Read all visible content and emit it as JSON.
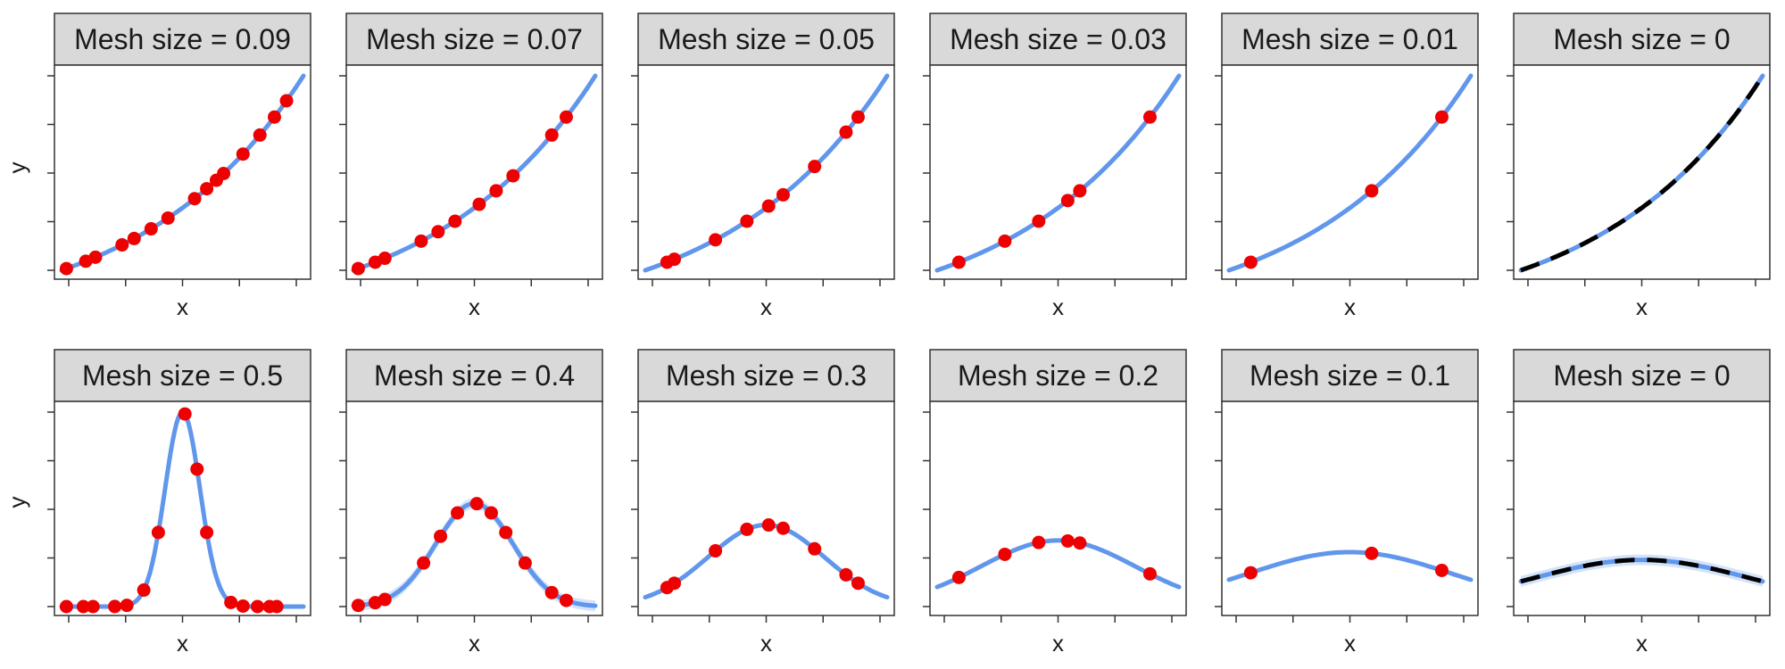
{
  "figure": {
    "ylabel_top": "y",
    "ylabel_bottom": "y"
  },
  "colors": {
    "fit_line": "#6096ec",
    "fit_ribbon": "#c9dcf7",
    "points": "#ee0000",
    "truth_line": "#000000",
    "strip_bg": "#d9d9d9",
    "panel_border": "#333333"
  },
  "chart_data": [
    {
      "type": "line",
      "title": "Mesh size = 0.09",
      "xlabel": "x",
      "row": "top",
      "curve": "exp",
      "points_x": [
        0.02,
        0.1,
        0.14,
        0.25,
        0.3,
        0.37,
        0.44,
        0.55,
        0.6,
        0.64,
        0.67,
        0.75,
        0.82,
        0.88,
        0.93
      ]
    },
    {
      "type": "line",
      "title": "Mesh size = 0.07",
      "xlabel": "x",
      "row": "top",
      "curve": "exp",
      "points_x": [
        0.02,
        0.09,
        0.13,
        0.28,
        0.35,
        0.42,
        0.52,
        0.59,
        0.66,
        0.82,
        0.88
      ]
    },
    {
      "type": "line",
      "title": "Mesh size = 0.05",
      "xlabel": "x",
      "row": "top",
      "curve": "exp",
      "points_x": [
        0.09,
        0.12,
        0.29,
        0.42,
        0.51,
        0.57,
        0.7,
        0.83,
        0.88
      ]
    },
    {
      "type": "line",
      "title": "Mesh size = 0.03",
      "xlabel": "x",
      "row": "top",
      "curve": "exp",
      "points_x": [
        0.09,
        0.28,
        0.42,
        0.54,
        0.59,
        0.88
      ]
    },
    {
      "type": "line",
      "title": "Mesh size = 0.01",
      "xlabel": "x",
      "row": "top",
      "curve": "exp",
      "points_x": [
        0.09,
        0.59,
        0.88
      ]
    },
    {
      "type": "line",
      "title": "Mesh size = 0",
      "xlabel": "x",
      "row": "top",
      "curve": "exp",
      "points_x": [],
      "truth": true
    },
    {
      "type": "line",
      "title": "Mesh size = 0.5",
      "xlabel": "x",
      "row": "bottom",
      "curve": "gauss",
      "sigma": 0.072,
      "points_x": [
        0.02,
        0.09,
        0.13,
        0.22,
        0.27,
        0.34,
        0.4,
        0.51,
        0.56,
        0.6,
        0.7,
        0.75,
        0.81,
        0.86,
        0.89
      ]
    },
    {
      "type": "line",
      "title": "Mesh size = 0.4",
      "xlabel": "x",
      "row": "bottom",
      "curve": "gauss",
      "sigma": 0.16,
      "peak": 0.53,
      "points_x": [
        0.02,
        0.09,
        0.13,
        0.29,
        0.36,
        0.43,
        0.51,
        0.57,
        0.63,
        0.71,
        0.82,
        0.88
      ],
      "ribbon": true
    },
    {
      "type": "line",
      "title": "Mesh size = 0.3",
      "xlabel": "x",
      "row": "bottom",
      "curve": "gauss",
      "sigma": 0.24,
      "peak": 0.42,
      "points_x": [
        0.09,
        0.12,
        0.29,
        0.42,
        0.51,
        0.57,
        0.7,
        0.83,
        0.88
      ]
    },
    {
      "type": "line",
      "title": "Mesh size = 0.2",
      "xlabel": "x",
      "row": "bottom",
      "curve": "gauss",
      "sigma": 0.32,
      "peak": 0.34,
      "points_x": [
        0.09,
        0.28,
        0.42,
        0.54,
        0.59,
        0.88
      ]
    },
    {
      "type": "line",
      "title": "Mesh size = 0.1",
      "xlabel": "x",
      "row": "bottom",
      "curve": "gauss",
      "sigma": 0.42,
      "peak": 0.28,
      "points_x": [
        0.09,
        0.59,
        0.88
      ]
    },
    {
      "type": "line",
      "title": "Mesh size = 0",
      "xlabel": "x",
      "row": "bottom",
      "curve": "gauss",
      "sigma": 0.45,
      "peak": 0.24,
      "points_x": [],
      "truth": true,
      "ribbon": true
    }
  ]
}
